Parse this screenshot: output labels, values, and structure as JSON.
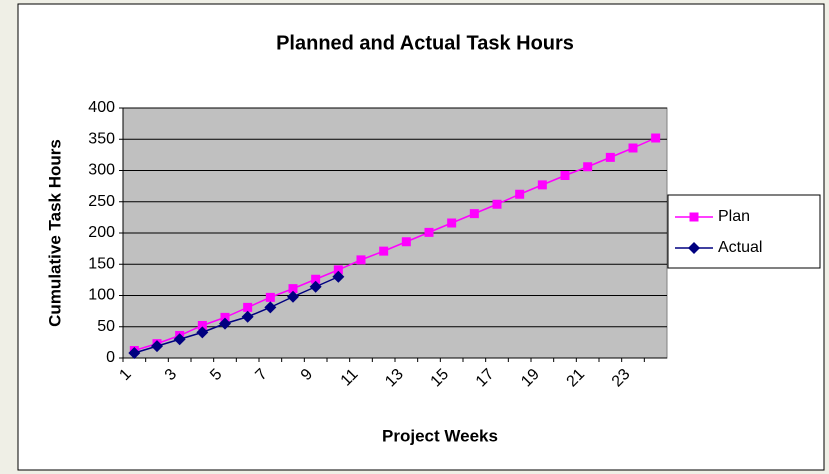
{
  "chart_data": {
    "type": "line",
    "title": "Planned and Actual Task Hours",
    "x_label": "Project Weeks",
    "y_label": "Cumulative Task Hours",
    "categories": [
      1,
      null,
      3,
      null,
      5,
      null,
      7,
      null,
      9,
      null,
      11,
      null,
      13,
      null,
      15,
      null,
      17,
      null,
      19,
      null,
      21,
      null,
      23,
      null
    ],
    "series": [
      {
        "name": "Plan",
        "color": "#ff00ff",
        "marker": "square",
        "values": [
          12,
          23,
          36,
          52,
          65,
          81,
          97,
          111,
          126,
          141,
          157,
          171,
          186,
          201,
          216,
          231,
          246,
          262,
          277,
          292,
          306,
          321,
          336,
          352
        ]
      },
      {
        "name": "Actual",
        "color": "#000080",
        "marker": "diamond",
        "values": [
          8,
          19,
          30,
          41,
          55,
          66,
          81,
          98,
          114,
          130,
          null,
          null,
          null,
          null,
          null,
          null,
          null,
          null,
          null,
          null,
          null,
          null,
          null,
          null
        ]
      }
    ],
    "ylim": [
      0,
      400
    ],
    "yticks": [
      0,
      50,
      100,
      150,
      200,
      250,
      300,
      350,
      400
    ],
    "grid": true,
    "legend": "right",
    "plot_color": "#c0c0c0"
  }
}
